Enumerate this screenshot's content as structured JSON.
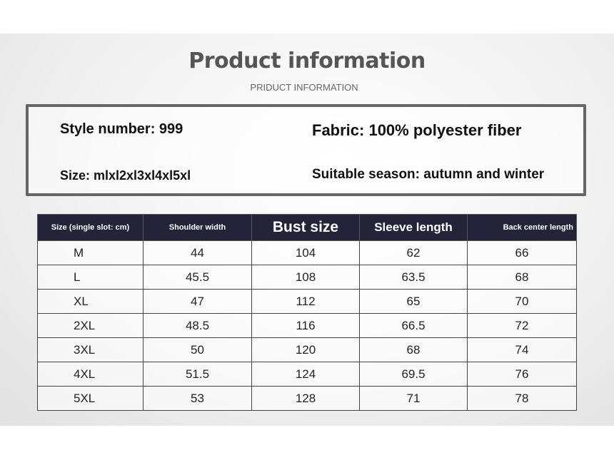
{
  "header": {
    "title": "Product information",
    "subtitle": "PRIDUCT  INFORMATION"
  },
  "info": {
    "style_number": "Style number: 999",
    "fabric": "Fabric: 100% polyester fiber",
    "size": "Size: mlxl2xl3xl4xl5xl",
    "season": "Suitable season: autumn and winter"
  },
  "table": {
    "headers": [
      "Size (single slot: cm)",
      "Shoulder width",
      "Bust size",
      "Sleeve length",
      "Back center length"
    ],
    "rows": [
      [
        "M",
        "44",
        "104",
        "62",
        "66"
      ],
      [
        "L",
        "45.5",
        "108",
        "63.5",
        "68"
      ],
      [
        "XL",
        "47",
        "112",
        "65",
        "70"
      ],
      [
        "2XL",
        "48.5",
        "116",
        "66.5",
        "72"
      ],
      [
        "3XL",
        "50",
        "120",
        "68",
        "74"
      ],
      [
        "4XL",
        "51.5",
        "124",
        "69.5",
        "76"
      ],
      [
        "5XL",
        "53",
        "128",
        "71",
        "78"
      ]
    ]
  },
  "colors": {
    "header_bg": "#23233a",
    "border": "#666666",
    "title": "#555555"
  }
}
